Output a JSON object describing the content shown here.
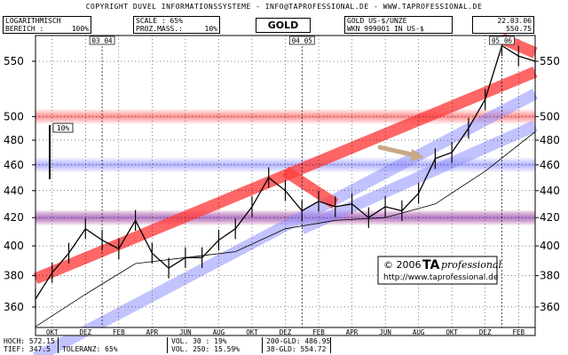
{
  "header": {
    "copyright": "COPYRIGHT  DUVEL INFORMATIONSSYSTEME  -  INFO@TAPROFESSIONAL.DE  -  WWW.TAPROFESSIONAL.DE",
    "left_box": {
      "line1": "LOGARITHMISCH",
      "line2_label": "BEREICH :",
      "line2_value": "100%"
    },
    "scale_box": {
      "line1_label": "SCALE : 65%",
      "line2_label": "PROZ.MASS.:",
      "line2_value": "10%"
    },
    "title": "GOLD",
    "right_box": {
      "line1_label": "GOLD US-$/UNZE",
      "line2_label": "WKN 999001   IN US-$"
    },
    "date_box": {
      "date": "22.03.06",
      "price": "550.75"
    },
    "year_markers": [
      "03",
      "04",
      "04",
      "05",
      "05",
      "06"
    ]
  },
  "watermark": {
    "line1": "© 2006",
    "brand_ta": "TA",
    "brand_rest": "professional",
    "url": "http://www.taprofessional.de"
  },
  "percent_label": "10%",
  "footer": {
    "hoch": "HOCH: 572.15",
    "tief": "TIEF: 347.5",
    "vol30": "VOL. 30 : 19%",
    "vol250": "VOL. 250: 15.59%",
    "toleranz": "TOLERANZ: 65%",
    "gld200": "200-GLD: 486.95",
    "gld38": "38-GLD: 554.72"
  },
  "colors": {
    "resistance": "#ff4040",
    "support": "#9090ff",
    "arrow": "#c8a888"
  },
  "chart_data": {
    "type": "bar",
    "scale": "log",
    "ylim": [
      347.5,
      575
    ],
    "yticks": [
      360,
      380,
      400,
      420,
      440,
      460,
      480,
      500,
      550
    ],
    "xticks": [
      "OKT",
      "DEZ",
      "FEB",
      "APR",
      "JUN",
      "AUG",
      "OKT",
      "DEZ",
      "FEB",
      "APR",
      "JUN",
      "AUG",
      "OKT",
      "DEZ",
      "FEB"
    ],
    "x_start": "2003-09",
    "x_end": "2006-03",
    "horizontal_levels": [
      {
        "value": 500,
        "color": "resistance"
      },
      {
        "value": 420,
        "color": "resistance"
      },
      {
        "value": 460,
        "color": "support"
      },
      {
        "value": 420,
        "color": "support"
      }
    ],
    "trend_channels": [
      {
        "color": "resistance",
        "from": [
          "2003-09",
          378
        ],
        "to": [
          "2006-03",
          540
        ]
      },
      {
        "color": "support",
        "from": [
          "2003-09",
          330
        ],
        "to": [
          "2006-03",
          520
        ]
      },
      {
        "color": "support",
        "from": [
          "2005-01",
          412
        ],
        "to": [
          "2006-03",
          492
        ]
      },
      {
        "color": "resistance",
        "from": [
          "2004-12",
          455
        ],
        "to": [
          "2005-03",
          430
        ]
      },
      {
        "color": "resistance",
        "from": [
          "2006-01",
          572
        ],
        "to": [
          "2006-03",
          558
        ]
      }
    ],
    "series": [
      {
        "kind": "monthly_close",
        "x": [
          "2003-09",
          "2003-10",
          "2003-11",
          "2003-12",
          "2004-01",
          "2004-02",
          "2004-03",
          "2004-04",
          "2004-05",
          "2004-06",
          "2004-07",
          "2004-08",
          "2004-09",
          "2004-10",
          "2004-11",
          "2004-12",
          "2005-01",
          "2005-02",
          "2005-03",
          "2005-04",
          "2005-05",
          "2005-06",
          "2005-07",
          "2005-08",
          "2005-09",
          "2005-10",
          "2005-11",
          "2005-12",
          "2006-01",
          "2006-02",
          "2006-03"
        ],
        "y": [
          365,
          382,
          395,
          412,
          404,
          398,
          418,
          395,
          385,
          392,
          392,
          404,
          412,
          428,
          450,
          440,
          425,
          432,
          428,
          430,
          420,
          428,
          425,
          438,
          465,
          470,
          490,
          515,
          565,
          555,
          550
        ]
      },
      {
        "kind": "moving_average_long",
        "x": [
          "2003-09",
          "2003-12",
          "2004-03",
          "2004-06",
          "2004-09",
          "2004-12",
          "2005-03",
          "2005-06",
          "2005-09",
          "2005-12",
          "2006-03"
        ],
        "y": [
          348,
          368,
          388,
          392,
          396,
          412,
          418,
          420,
          430,
          455,
          487
        ]
      }
    ]
  }
}
